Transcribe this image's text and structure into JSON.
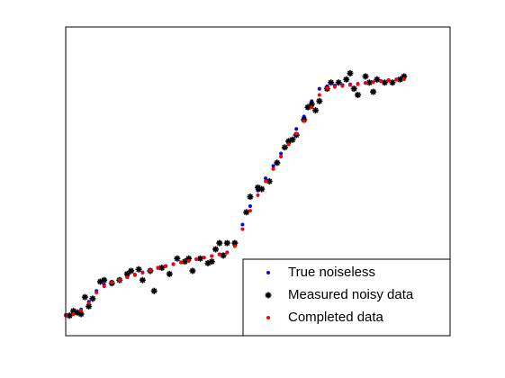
{
  "chart_data": {
    "type": "scatter",
    "xlim": [
      0,
      100
    ],
    "ylim": [
      0,
      100
    ],
    "legend": "lower right",
    "series": [
      {
        "name": "True noiseless",
        "color": "#0000ff",
        "marker": "dot",
        "x": [
          0,
          2,
          4,
          6,
          8,
          10,
          12,
          14,
          16,
          18,
          20,
          22,
          24,
          26,
          28,
          30,
          32,
          34,
          36,
          38,
          40,
          42,
          44,
          46,
          48,
          50,
          52,
          54,
          56,
          58,
          60,
          62,
          64,
          66,
          68,
          70,
          72,
          74,
          76,
          78,
          80,
          82,
          84,
          86,
          88
        ],
        "values": [
          6.7,
          7.2,
          8.5,
          11,
          14.5,
          16.5,
          17.5,
          18.3,
          19,
          19.8,
          20.5,
          21.2,
          22,
          22.6,
          23.2,
          23.8,
          24.3,
          24.8,
          25.3,
          25.8,
          26.4,
          27,
          30,
          36,
          42,
          47,
          51,
          55,
          59,
          63,
          67,
          71,
          76,
          80,
          80.8,
          81,
          81.2,
          81.4,
          81.6,
          81.9,
          82.2,
          82.5,
          82.8,
          83,
          83.1
        ]
      },
      {
        "name": "Measured noisy data",
        "color": "#000000",
        "marker": "asterisk",
        "x": [
          1,
          2,
          3,
          4,
          5,
          6,
          7,
          9,
          10,
          12,
          14,
          16,
          17,
          19,
          20,
          22,
          23,
          25,
          27,
          29,
          31,
          32,
          33,
          35,
          37,
          38,
          39,
          40,
          41,
          42,
          44,
          47,
          48,
          50,
          51,
          53,
          55,
          57,
          58,
          59,
          60,
          62,
          63,
          64,
          65,
          66,
          68,
          69,
          71,
          73,
          74,
          75,
          76,
          78,
          79,
          80,
          81,
          83,
          85,
          87,
          88
        ],
        "values": [
          6.5,
          8,
          7.5,
          7,
          12.5,
          9.5,
          12,
          17.5,
          18,
          17,
          18,
          20,
          21,
          21.5,
          18,
          21,
          14.5,
          22,
          20,
          25,
          24,
          25,
          21,
          25,
          23.5,
          24,
          28,
          30,
          26,
          30,
          30,
          40,
          45,
          48,
          47.5,
          50,
          56,
          61,
          63,
          63.5,
          65,
          70,
          74,
          75,
          73,
          76,
          80,
          82,
          82,
          83,
          85,
          80,
          78,
          84,
          82,
          79,
          83,
          82,
          82,
          83,
          84
        ]
      },
      {
        "name": "Completed data",
        "color": "#ff0000",
        "marker": "dot",
        "x": [
          0,
          2,
          4,
          6,
          8,
          10,
          12,
          14,
          16,
          18,
          20,
          22,
          24,
          26,
          28,
          30,
          32,
          34,
          36,
          38,
          40,
          42,
          44,
          46,
          48,
          50,
          52,
          54,
          56,
          58,
          60,
          62,
          64,
          66,
          68,
          70,
          72,
          74,
          76,
          78,
          80,
          82,
          84,
          86,
          88
        ],
        "values": [
          6.5,
          7,
          8.2,
          10.6,
          14,
          16,
          17.2,
          18.1,
          18.9,
          19.6,
          20.4,
          21.1,
          21.9,
          22.5,
          23.1,
          23.7,
          24.2,
          24.8,
          25.3,
          25.8,
          26.3,
          26.9,
          29,
          34.5,
          40.5,
          45.5,
          50,
          54,
          58,
          62,
          65.5,
          69.5,
          74,
          78,
          80.2,
          80.6,
          80.9,
          81.2,
          81.5,
          81.8,
          82.1,
          82.4,
          82.7,
          82.9,
          83.1
        ]
      }
    ]
  }
}
